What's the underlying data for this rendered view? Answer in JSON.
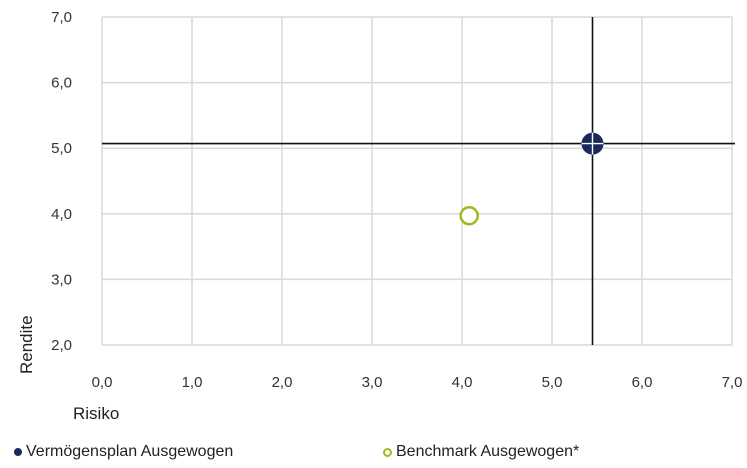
{
  "chart_data": {
    "type": "scatter",
    "xlabel": "Risiko",
    "ylabel": "Rendite",
    "xlim": [
      0,
      7
    ],
    "ylim": [
      2,
      7
    ],
    "x_ticks": [
      "0,0",
      "1,0",
      "2,0",
      "3,0",
      "4,0",
      "5,0",
      "6,0",
      "7,0"
    ],
    "y_ticks": [
      "2,0",
      "3,0",
      "4,0",
      "5,0",
      "6,0",
      "7,0"
    ],
    "grid": true,
    "crosshair": {
      "x": 5.45,
      "y": 5.07
    },
    "series": [
      {
        "name": "Vermögensplan Ausgewogen",
        "x": 5.45,
        "y": 5.07,
        "color": "#1b2a5c",
        "marker": "filled-circle-cross"
      },
      {
        "name": "Benchmark Ausgewogen*",
        "x": 4.08,
        "y": 3.97,
        "color": "#9bbb1c",
        "marker": "hollow-circle"
      }
    ],
    "legend_position": "bottom"
  }
}
